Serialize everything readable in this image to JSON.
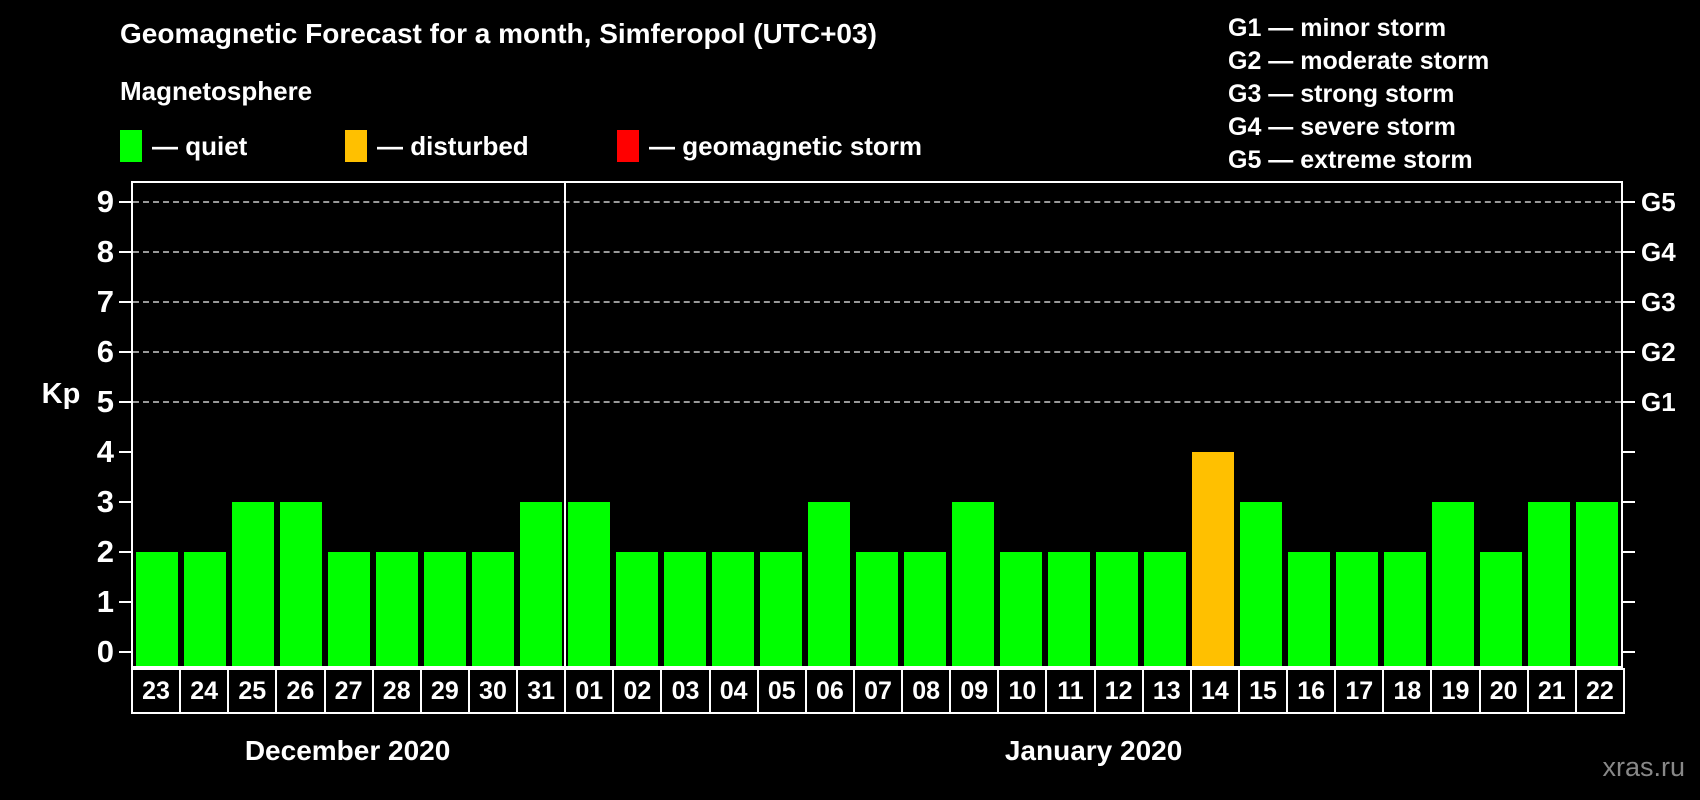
{
  "header": {
    "title": "Geomagnetic Forecast for a month, Simferopol (UTC+03)",
    "section_label": "Magnetosphere",
    "legend": [
      {
        "name": "quiet",
        "label": "— quiet",
        "color": "#00ff00"
      },
      {
        "name": "disturbed",
        "label": "— disturbed",
        "color": "#ffc000"
      },
      {
        "name": "storm",
        "label": "— geomagnetic storm",
        "color": "#ff0000"
      }
    ]
  },
  "g_legend": [
    "G1 — minor storm",
    "G2 — moderate storm",
    "G3 — strong storm",
    "G4 — severe storm",
    "G5 — extreme storm"
  ],
  "chart_data": {
    "type": "bar",
    "title": "Geomagnetic Forecast for a month, Simferopol (UTC+03)",
    "ylabel": "Kp",
    "ylim": [
      -0.3,
      9.4
    ],
    "yticks": [
      0,
      1,
      2,
      3,
      4,
      5,
      6,
      7,
      8,
      9
    ],
    "gridlines_at": [
      5,
      6,
      7,
      8,
      9
    ],
    "grid": "dashed horizontal lines only at G-storm levels 5-9",
    "legend_position": "top-left",
    "right_axis_labels": [
      {
        "label": "G1",
        "value": 5
      },
      {
        "label": "G2",
        "value": 6
      },
      {
        "label": "G3",
        "value": 7
      },
      {
        "label": "G4",
        "value": 8
      },
      {
        "label": "G5",
        "value": 9
      }
    ],
    "categories": [
      "23",
      "24",
      "25",
      "26",
      "27",
      "28",
      "29",
      "30",
      "31",
      "01",
      "02",
      "03",
      "04",
      "05",
      "06",
      "07",
      "08",
      "09",
      "10",
      "11",
      "12",
      "13",
      "14",
      "15",
      "16",
      "17",
      "18",
      "19",
      "20",
      "21",
      "22"
    ],
    "values": [
      2,
      2,
      3,
      3,
      2,
      2,
      2,
      2,
      3,
      3,
      2,
      2,
      2,
      2,
      3,
      2,
      2,
      3,
      2,
      2,
      2,
      2,
      4,
      3,
      2,
      2,
      2,
      3,
      2,
      3,
      3
    ],
    "states": [
      "quiet",
      "quiet",
      "quiet",
      "quiet",
      "quiet",
      "quiet",
      "quiet",
      "quiet",
      "quiet",
      "quiet",
      "quiet",
      "quiet",
      "quiet",
      "quiet",
      "quiet",
      "quiet",
      "quiet",
      "quiet",
      "quiet",
      "quiet",
      "quiet",
      "quiet",
      "disturbed",
      "quiet",
      "quiet",
      "quiet",
      "quiet",
      "quiet",
      "quiet",
      "quiet",
      "quiet"
    ],
    "bar_colors": {
      "quiet": "#00ff00",
      "disturbed": "#ffc000",
      "storm": "#ff0000"
    },
    "month_groups": [
      {
        "label": "December 2020",
        "start": 0,
        "count": 9
      },
      {
        "label": "January 2020",
        "start": 9,
        "count": 22
      }
    ],
    "separator_after_index": 8
  },
  "watermark": "xras.ru"
}
